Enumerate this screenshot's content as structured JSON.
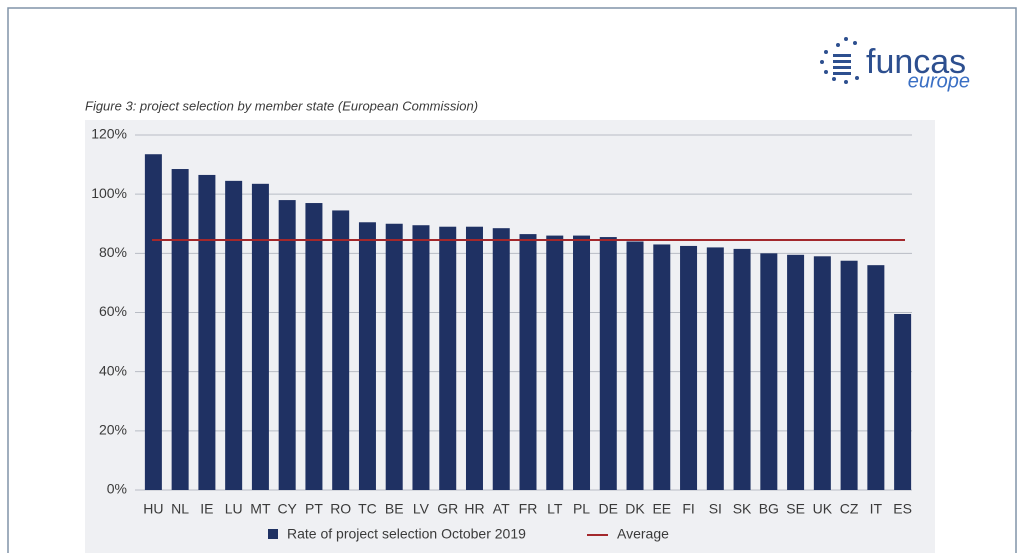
{
  "chart_data": {
    "type": "bar",
    "logo": {
      "name": "funcas",
      "sub": "europe"
    },
    "title": "Figure 3: project selection by member state (European Commission)",
    "categories": [
      "HU",
      "NL",
      "IE",
      "LU",
      "MT",
      "CY",
      "PT",
      "RO",
      "TC",
      "BE",
      "LV",
      "GR",
      "HR",
      "AT",
      "FR",
      "LT",
      "PL",
      "DE",
      "DK",
      "EE",
      "FI",
      "SI",
      "SK",
      "BG",
      "SE",
      "UK",
      "CZ",
      "IT",
      "ES"
    ],
    "series": [
      {
        "name": "Rate of project selection October 2019",
        "color": "#1f3163",
        "values": [
          113.5,
          108.5,
          106.5,
          104.5,
          103.5,
          98,
          97,
          94.5,
          90.5,
          90,
          89.5,
          89,
          89,
          88.5,
          86.5,
          86,
          86,
          85.5,
          84,
          83,
          82.5,
          82,
          81.5,
          80,
          79.5,
          79,
          77.5,
          76,
          59.5
        ]
      }
    ],
    "average": {
      "name": "Average",
      "color": "#a3282c",
      "value": 84.5
    },
    "ylim": [
      0,
      120
    ],
    "yticks": [
      {
        "value": 0,
        "label": "0%"
      },
      {
        "value": 20,
        "label": "20%"
      },
      {
        "value": 40,
        "label": "40%"
      },
      {
        "value": 60,
        "label": "60%"
      },
      {
        "value": 80,
        "label": "80%"
      },
      {
        "value": 100,
        "label": "100%"
      },
      {
        "value": 120,
        "label": "120%"
      }
    ],
    "grid": true
  }
}
